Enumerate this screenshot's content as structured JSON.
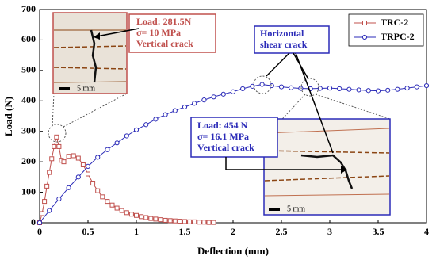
{
  "chart_data": {
    "type": "line",
    "xlabel": "Deflection (mm)",
    "ylabel": "Load (N)",
    "xlim": [
      0,
      4
    ],
    "ylim": [
      0,
      700
    ],
    "xticks": [
      0,
      0.5,
      1,
      1.5,
      2,
      2.5,
      3,
      3.5,
      4
    ],
    "yticks": [
      0,
      100,
      200,
      300,
      400,
      500,
      600,
      700
    ],
    "legend": "upper right",
    "series": [
      {
        "name": "TRC-2",
        "color": "#c0504d",
        "marker": "square",
        "x": [
          0,
          0.025,
          0.05,
          0.075,
          0.1,
          0.125,
          0.15,
          0.175,
          0.2,
          0.225,
          0.25,
          0.3,
          0.35,
          0.4,
          0.45,
          0.5,
          0.55,
          0.6,
          0.65,
          0.7,
          0.75,
          0.8,
          0.85,
          0.9,
          0.95,
          1.0,
          1.05,
          1.1,
          1.15,
          1.2,
          1.25,
          1.3,
          1.35,
          1.4,
          1.45,
          1.5,
          1.55,
          1.6,
          1.65,
          1.7,
          1.75,
          1.8
        ],
        "values": [
          0,
          30,
          70,
          120,
          165,
          210,
          250,
          281.5,
          250,
          205,
          200,
          218,
          220,
          212,
          190,
          160,
          130,
          105,
          85,
          70,
          58,
          48,
          40,
          33,
          28,
          24,
          20,
          17,
          14,
          12,
          10,
          8,
          7,
          6,
          5,
          4,
          3,
          3,
          2,
          2,
          1,
          1
        ]
      },
      {
        "name": "TRPC-2",
        "color": "#2b2bb8",
        "marker": "circle",
        "x": [
          0,
          0.1,
          0.2,
          0.3,
          0.4,
          0.5,
          0.6,
          0.7,
          0.8,
          0.9,
          1.0,
          1.1,
          1.2,
          1.3,
          1.4,
          1.5,
          1.6,
          1.7,
          1.8,
          1.9,
          2.0,
          2.1,
          2.2,
          2.3,
          2.4,
          2.5,
          2.6,
          2.7,
          2.8,
          2.9,
          3.0,
          3.1,
          3.2,
          3.3,
          3.4,
          3.5,
          3.6,
          3.7,
          3.8,
          3.9,
          4.0
        ],
        "values": [
          0,
          40,
          78,
          115,
          150,
          185,
          215,
          240,
          262,
          285,
          305,
          322,
          340,
          355,
          368,
          380,
          392,
          403,
          413,
          422,
          430,
          440,
          448,
          454,
          450,
          446,
          443,
          441,
          440,
          441,
          442,
          440,
          438,
          436,
          434,
          433,
          435,
          438,
          442,
          446,
          450
        ]
      }
    ],
    "annotations": [
      "Load: 281.5N",
      "σ= 10 MPa",
      "Vertical crack",
      "Load: 454 N",
      "σ= 16.1 MPa",
      "Vertical crack",
      "Horizontal",
      "shear crack"
    ],
    "scale_labels": [
      "5 mm",
      "5 mm"
    ]
  }
}
